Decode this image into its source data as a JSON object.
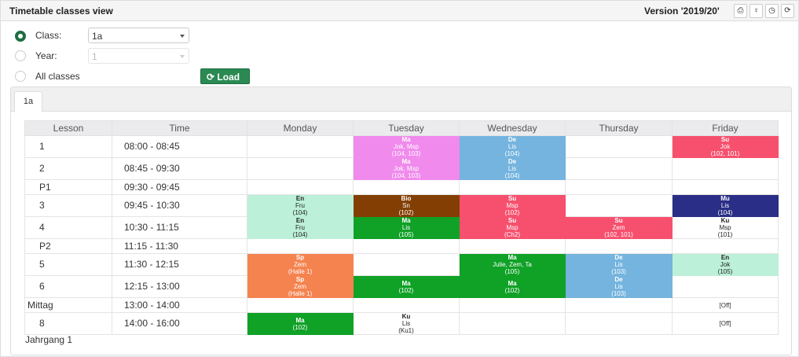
{
  "header": {
    "title": "Timetable classes view",
    "version": "Version '2019/20'",
    "buttons": [
      {
        "name": "print-icon",
        "glyph": "⎙"
      },
      {
        "name": "lightbulb-icon",
        "glyph": "♀"
      },
      {
        "name": "clock-icon",
        "glyph": "◷"
      },
      {
        "name": "refresh-icon",
        "glyph": "⟳"
      }
    ]
  },
  "filters": {
    "class_label": "Class:",
    "class_value": "1a",
    "year_label": "Year:",
    "year_value": "1",
    "all_label": "All classes",
    "selected": "class",
    "load_label": "Load"
  },
  "tabs": [
    {
      "label": "1a",
      "active": true
    }
  ],
  "timetable": {
    "columns": [
      "Lesson",
      "Time",
      "Monday",
      "Tuesday",
      "Wednesday",
      "Thursday",
      "Friday"
    ],
    "rows": [
      {
        "lesson": "1",
        "time": "08:00 - 08:45",
        "cells": [
          null,
          {
            "s": "Ma",
            "t": "Jok, Msp",
            "r": "(104, 103)",
            "bg": "#f08aec",
            "fg": "#fff"
          },
          {
            "s": "De",
            "t": "Lis",
            "r": "(104)",
            "bg": "#74b4de",
            "fg": "#fff"
          },
          null,
          {
            "s": "Su",
            "t": "Jok",
            "r": "(102, 101)",
            "bg": "#f7506e",
            "fg": "#fff"
          }
        ]
      },
      {
        "lesson": "2",
        "time": "08:45 - 09:30",
        "cells": [
          null,
          {
            "s": "Ma",
            "t": "Jok, Msp",
            "r": "(104, 103)",
            "bg": "#f08aec",
            "fg": "#fff"
          },
          {
            "s": "De",
            "t": "Lis",
            "r": "(104)",
            "bg": "#74b4de",
            "fg": "#fff"
          },
          null,
          null
        ]
      },
      {
        "lesson": "P1",
        "time": "09:30 - 09:45",
        "pause": true,
        "cells": [
          null,
          null,
          null,
          null,
          null
        ]
      },
      {
        "lesson": "3",
        "time": "09:45 - 10:30",
        "cells": [
          {
            "s": "En",
            "t": "Fru",
            "r": "(104)",
            "bg": "#bcf0d8",
            "fg": "#222"
          },
          {
            "s": "Bio",
            "t": "Sn",
            "r": "(102)",
            "bg": "#833f03",
            "fg": "#fff"
          },
          {
            "s": "Su",
            "t": "Msp",
            "r": "(102)",
            "bg": "#f7506e",
            "fg": "#fff"
          },
          null,
          {
            "s": "Mu",
            "t": "Lis",
            "r": "(104)",
            "bg": "#2a2e86",
            "fg": "#fff"
          }
        ]
      },
      {
        "lesson": "4",
        "time": "10:30 - 11:15",
        "cells": [
          {
            "s": "En",
            "t": "Fru",
            "r": "(104)",
            "bg": "#bcf0d8",
            "fg": "#222"
          },
          {
            "s": "Ma",
            "t": "Lis",
            "r": "(105)",
            "bg": "#10a127",
            "fg": "#fff"
          },
          {
            "s": "Su",
            "t": "Msp",
            "r": "(Ch2)",
            "bg": "#f7506e",
            "fg": "#fff"
          },
          {
            "s": "Su",
            "t": "Zem",
            "r": "(102, 101)",
            "bg": "#f7506e",
            "fg": "#fff"
          },
          {
            "s": "Ku",
            "t": "Msp",
            "r": "(101)",
            "bg": "#ffffff",
            "fg": "#222"
          }
        ]
      },
      {
        "lesson": "P2",
        "time": "11:15 - 11:30",
        "pause": true,
        "cells": [
          null,
          null,
          null,
          null,
          null
        ]
      },
      {
        "lesson": "5",
        "time": "11:30 - 12:15",
        "cells": [
          {
            "s": "Sp",
            "t": "Zem",
            "r": "(Halle 1)",
            "bg": "#f5834f",
            "fg": "#fff"
          },
          null,
          {
            "s": "Ma",
            "t": "Julie, Zem, Ta",
            "r": "(105)",
            "bg": "#10a127",
            "fg": "#fff"
          },
          {
            "s": "De",
            "t": "Lis",
            "r": "(103)",
            "bg": "#74b4de",
            "fg": "#fff"
          },
          {
            "s": "En",
            "t": "Jok",
            "r": "(105)",
            "bg": "#bcf0d8",
            "fg": "#222"
          }
        ]
      },
      {
        "lesson": "6",
        "time": "12:15 - 13:00",
        "cells": [
          {
            "s": "Sp",
            "t": "Zem",
            "r": "(Halle 1)",
            "bg": "#f5834f",
            "fg": "#fff"
          },
          {
            "s": "Ma",
            "t": "",
            "r": "(102)",
            "bg": "#10a127",
            "fg": "#fff"
          },
          {
            "s": "Ma",
            "t": "",
            "r": "(102)",
            "bg": "#10a127",
            "fg": "#fff"
          },
          {
            "s": "De",
            "t": "Lis",
            "r": "(103)",
            "bg": "#74b4de",
            "fg": "#fff"
          },
          null
        ]
      },
      {
        "lesson": "Mittag",
        "time": "13:00 - 14:00",
        "pause": true,
        "cells": [
          null,
          null,
          null,
          null,
          {
            "off": "[Off]"
          }
        ]
      },
      {
        "lesson": "8",
        "time": "14:00 - 16:00",
        "cells": [
          {
            "s": "Ma",
            "t": "",
            "r": "(102)",
            "bg": "#10a127",
            "fg": "#fff"
          },
          {
            "s": "Ku",
            "t": "Lis",
            "r": "(Ku1)",
            "bg": "#ffffff",
            "fg": "#222"
          },
          null,
          null,
          {
            "off": "[Off]"
          }
        ]
      }
    ]
  },
  "footer": "Jahrgang 1"
}
